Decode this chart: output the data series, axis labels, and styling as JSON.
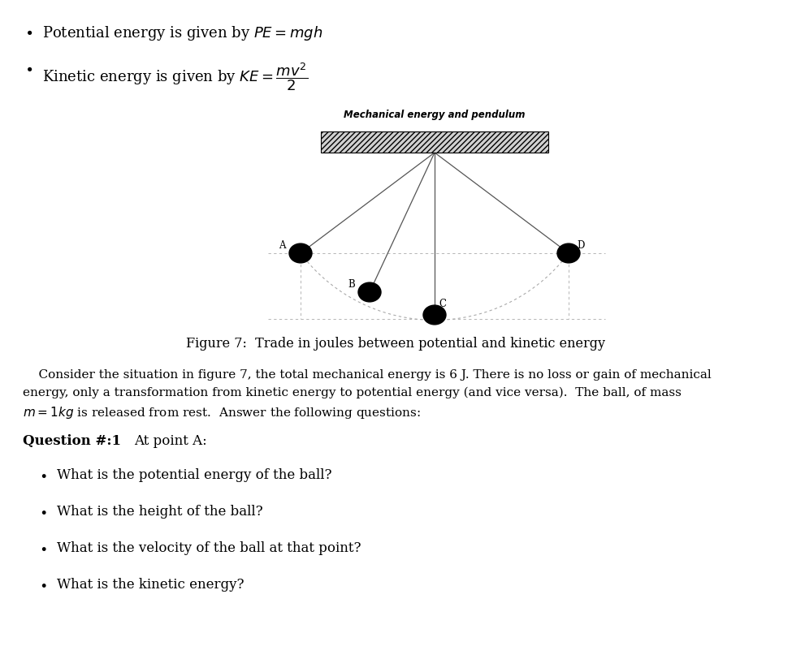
{
  "fig_title": "Mechanical energy and pendulum",
  "fig_caption": "Figure 7:  Trade in joules between potential and kinetic energy",
  "para_line1": "    Consider the situation in figure 7, the total mechanical energy is 6 J. There is no loss or gain of mechanical",
  "para_line2": "energy, only a transformation from kinetic energy to potential energy (and vice versa).  The ball, of mass",
  "para_line3": "$m = 1kg$ is released from rest.  Answer the following questions:",
  "q1_head": "Question #:1",
  "q1_sub": "At point A:",
  "q1_bullets": [
    "What is the potential energy of the ball?",
    "What is the height of the ball?",
    "What is the velocity of the ball at that point?",
    "What is the kinetic energy?"
  ],
  "background": "#ffffff",
  "hat_facecolor": "#d0d0d0",
  "dashed_color": "#aaaaaa",
  "rope_color": "#555555",
  "arc_color": "#aaaaaa",
  "ball_color": "#000000"
}
